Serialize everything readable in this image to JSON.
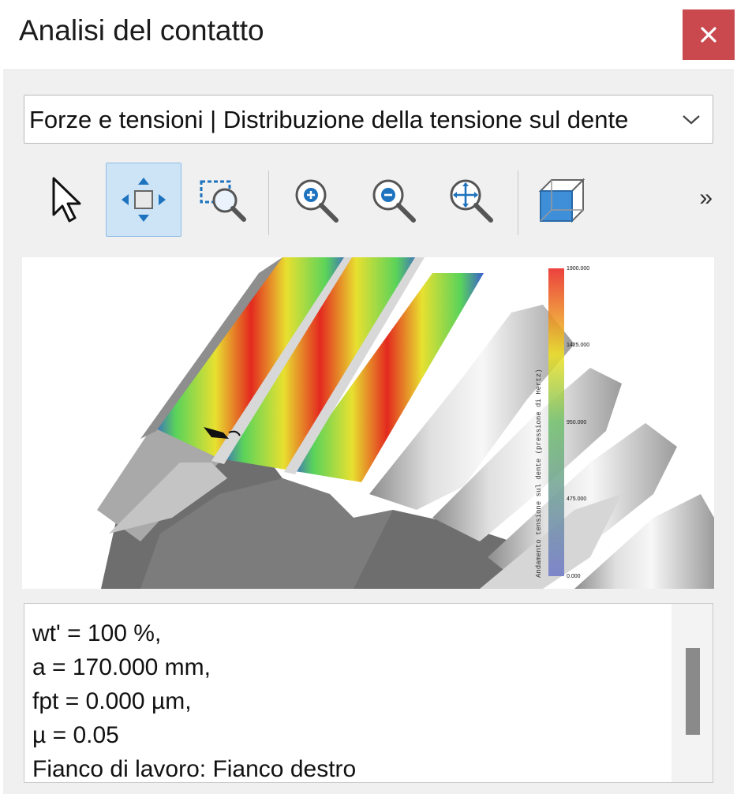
{
  "window": {
    "title": "Analisi del contatto",
    "close_icon": "close-icon",
    "close_color": "#c9494e"
  },
  "view_selector": {
    "value": "Forze e tensioni | Distribuzione della tensione sul dente"
  },
  "toolbar": {
    "tools": [
      {
        "name": "select-tool",
        "icon": "arrow-pointer-icon",
        "active": false
      },
      {
        "name": "pan-tool",
        "icon": "pan-move-icon",
        "active": true
      },
      {
        "name": "zoom-window-tool",
        "icon": "zoom-window-icon",
        "active": false
      },
      {
        "name": "zoom-in-tool",
        "icon": "zoom-in-icon",
        "active": false
      },
      {
        "name": "zoom-out-tool",
        "icon": "zoom-out-icon",
        "active": false
      },
      {
        "name": "zoom-fit-tool",
        "icon": "zoom-fit-icon",
        "active": false
      },
      {
        "name": "view-3d-tool",
        "icon": "cube-3d-icon",
        "active": false
      }
    ],
    "more_label": "»",
    "accent": "#cde4f7"
  },
  "plot": {
    "colorbar_title": "Andamento tensione sul dente (pressione di Hertz)",
    "colorbar_ticks": [
      "1900.000",
      "1425.000",
      "950.000",
      "475.000",
      "0.000"
    ],
    "colors": [
      "#e8201c",
      "#f0e020",
      "#6fbf6a",
      "#3f78c8"
    ]
  },
  "output": {
    "lines": [
      "wt' = 100 %,",
      "a = 170.000 mm,",
      "fpt = 0.000 µm,",
      "µ = 0.05",
      "Fianco di lavoro: Fianco destro"
    ]
  }
}
